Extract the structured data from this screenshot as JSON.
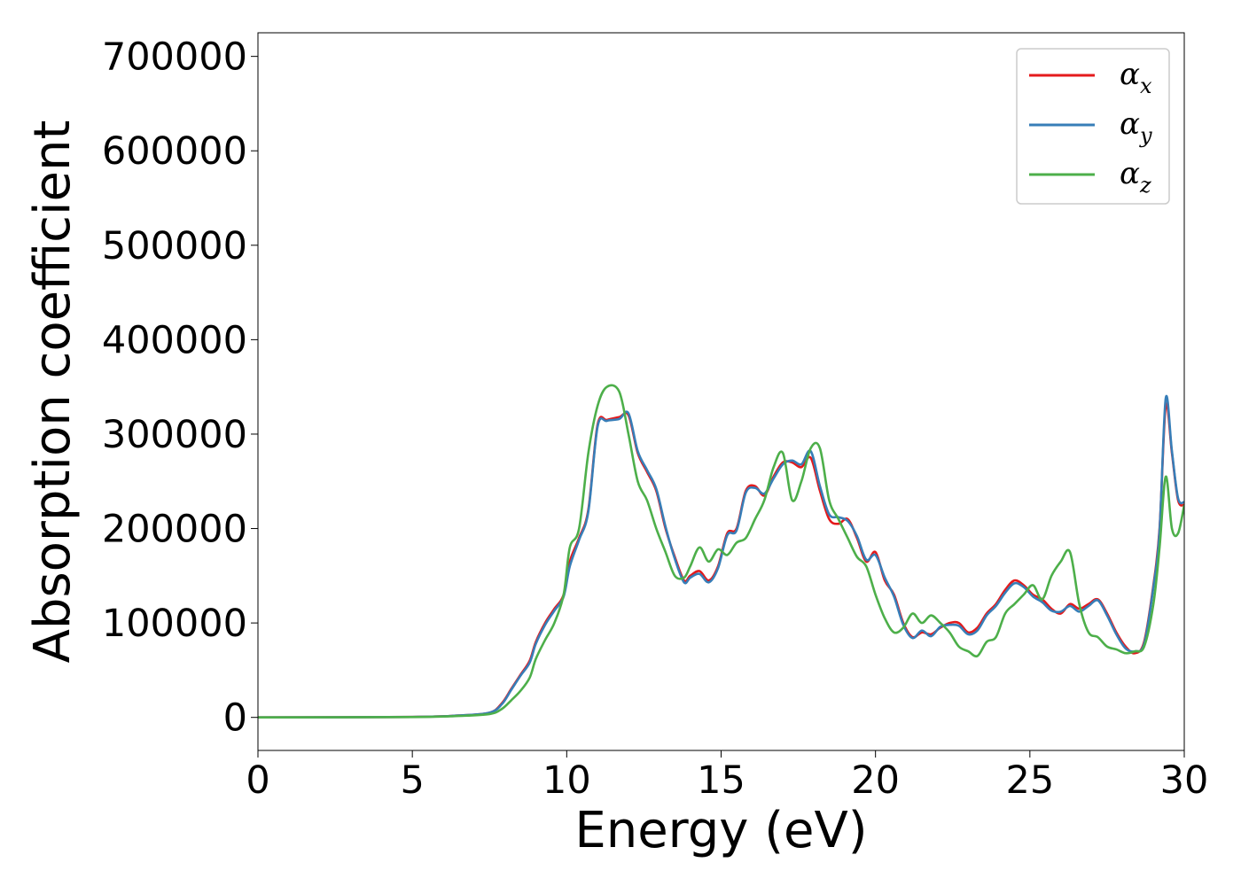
{
  "chart_data": {
    "type": "line",
    "xlabel": "Energy (eV)",
    "ylabel": "Absorption coefficient",
    "xlim": [
      0,
      30
    ],
    "ylim": [
      -35000,
      725000
    ],
    "xticks": [
      0,
      5,
      10,
      15,
      20,
      25,
      30
    ],
    "yticks": [
      0,
      100000,
      200000,
      300000,
      400000,
      500000,
      600000,
      700000
    ],
    "xtick_labels": [
      "0",
      "5",
      "10",
      "15",
      "20",
      "25",
      "30"
    ],
    "ytick_labels": [
      "0",
      "100000",
      "200000",
      "300000",
      "400000",
      "500000",
      "600000",
      "700000"
    ],
    "grid": false,
    "legend_position": "top-right",
    "series": [
      {
        "name_base": "α",
        "name_sub": "x",
        "color": "#e41a1c",
        "x": [
          0,
          5,
          6.5,
          7.5,
          7.9,
          8.2,
          8.5,
          8.8,
          9.0,
          9.3,
          9.6,
          9.9,
          10.1,
          10.4,
          10.7,
          11.0,
          11.3,
          11.7,
          12.0,
          12.3,
          12.6,
          12.9,
          13.2,
          13.5,
          13.8,
          14.0,
          14.3,
          14.6,
          14.9,
          15.2,
          15.5,
          15.8,
          16.1,
          16.4,
          16.7,
          17.0,
          17.3,
          17.6,
          17.9,
          18.2,
          18.5,
          18.8,
          19.1,
          19.4,
          19.7,
          20.0,
          20.3,
          20.6,
          20.9,
          21.2,
          21.5,
          21.8,
          22.1,
          22.4,
          22.7,
          23.0,
          23.3,
          23.6,
          23.9,
          24.2,
          24.5,
          24.8,
          25.1,
          25.4,
          25.7,
          26.0,
          26.3,
          26.6,
          26.9,
          27.2,
          27.5,
          27.8,
          28.1,
          28.4,
          28.7,
          29.0,
          29.2,
          29.4,
          29.6,
          29.8,
          30.0
        ],
        "values": [
          0,
          500,
          2000,
          5000,
          15000,
          30000,
          45000,
          60000,
          80000,
          100000,
          115000,
          130000,
          165000,
          190000,
          220000,
          310000,
          315000,
          318000,
          320000,
          280000,
          260000,
          240000,
          200000,
          170000,
          145000,
          150000,
          155000,
          145000,
          160000,
          195000,
          200000,
          240000,
          245000,
          235000,
          255000,
          270000,
          270000,
          265000,
          275000,
          240000,
          210000,
          205000,
          210000,
          190000,
          165000,
          175000,
          145000,
          130000,
          100000,
          85000,
          90000,
          88000,
          95000,
          100000,
          100000,
          90000,
          95000,
          110000,
          120000,
          135000,
          145000,
          140000,
          130000,
          125000,
          115000,
          110000,
          120000,
          115000,
          120000,
          125000,
          110000,
          90000,
          75000,
          68000,
          80000,
          140000,
          200000,
          330000,
          280000,
          230000,
          225000
        ]
      },
      {
        "name_base": "α",
        "name_sub": "y",
        "color": "#377eb8",
        "x": [
          0,
          5,
          6.5,
          7.5,
          7.9,
          8.2,
          8.5,
          8.8,
          9.0,
          9.3,
          9.6,
          9.9,
          10.1,
          10.4,
          10.7,
          11.0,
          11.3,
          11.7,
          12.0,
          12.3,
          12.6,
          12.9,
          13.2,
          13.5,
          13.8,
          14.0,
          14.3,
          14.6,
          14.9,
          15.2,
          15.5,
          15.8,
          16.1,
          16.4,
          16.7,
          17.0,
          17.3,
          17.6,
          17.9,
          18.2,
          18.5,
          18.8,
          19.1,
          19.4,
          19.7,
          20.0,
          20.3,
          20.6,
          20.9,
          21.2,
          21.5,
          21.8,
          22.1,
          22.4,
          22.7,
          23.0,
          23.3,
          23.6,
          23.9,
          24.2,
          24.5,
          24.8,
          25.1,
          25.4,
          25.7,
          26.0,
          26.3,
          26.6,
          26.9,
          27.2,
          27.5,
          27.8,
          28.1,
          28.4,
          28.7,
          29.0,
          29.2,
          29.4,
          29.6,
          29.8,
          30.0
        ],
        "values": [
          0,
          500,
          2000,
          5000,
          14000,
          29000,
          44000,
          58000,
          78000,
          98000,
          113000,
          128000,
          160000,
          188000,
          218000,
          308000,
          314000,
          316000,
          322000,
          282000,
          262000,
          242000,
          202000,
          168000,
          143000,
          148000,
          152000,
          143000,
          158000,
          193000,
          198000,
          238000,
          243000,
          237000,
          253000,
          268000,
          272000,
          268000,
          282000,
          245000,
          215000,
          212000,
          208000,
          192000,
          167000,
          172000,
          148000,
          128000,
          98000,
          84000,
          92000,
          86000,
          96000,
          98000,
          97000,
          88000,
          92000,
          108000,
          118000,
          132000,
          142000,
          138000,
          128000,
          122000,
          113000,
          112000,
          118000,
          112000,
          118000,
          124000,
          108000,
          88000,
          73000,
          70000,
          78000,
          138000,
          198000,
          338000,
          282000,
          232000,
          228000
        ]
      },
      {
        "name_base": "α",
        "name_sub": "z",
        "color": "#4daf4a",
        "x": [
          0,
          5,
          6.5,
          7.5,
          7.9,
          8.2,
          8.5,
          8.8,
          9.0,
          9.3,
          9.6,
          9.9,
          10.1,
          10.4,
          10.7,
          11.0,
          11.3,
          11.7,
          12.0,
          12.3,
          12.6,
          12.9,
          13.2,
          13.5,
          13.8,
          14.0,
          14.3,
          14.6,
          14.9,
          15.2,
          15.5,
          15.8,
          16.1,
          16.4,
          16.7,
          17.0,
          17.3,
          17.6,
          17.9,
          18.2,
          18.5,
          18.8,
          19.1,
          19.4,
          19.7,
          20.0,
          20.3,
          20.6,
          20.9,
          21.2,
          21.5,
          21.8,
          22.1,
          22.4,
          22.7,
          23.0,
          23.3,
          23.6,
          23.9,
          24.2,
          24.5,
          24.8,
          25.1,
          25.4,
          25.7,
          26.0,
          26.3,
          26.6,
          26.9,
          27.2,
          27.5,
          27.8,
          28.1,
          28.4,
          28.7,
          29.0,
          29.2,
          29.4,
          29.6,
          29.8,
          30.0
        ],
        "values": [
          0,
          400,
          1500,
          3500,
          9000,
          18000,
          28000,
          42000,
          62000,
          82000,
          100000,
          130000,
          180000,
          200000,
          280000,
          330000,
          350000,
          345000,
          300000,
          250000,
          230000,
          200000,
          175000,
          150000,
          148000,
          160000,
          180000,
          165000,
          178000,
          172000,
          185000,
          190000,
          210000,
          230000,
          265000,
          280000,
          230000,
          250000,
          285000,
          285000,
          230000,
          210000,
          190000,
          170000,
          160000,
          130000,
          105000,
          90000,
          95000,
          110000,
          100000,
          108000,
          100000,
          90000,
          75000,
          70000,
          65000,
          80000,
          85000,
          110000,
          120000,
          130000,
          140000,
          125000,
          150000,
          165000,
          175000,
          120000,
          90000,
          85000,
          75000,
          72000,
          68000,
          70000,
          75000,
          120000,
          180000,
          255000,
          200000,
          195000,
          225000
        ]
      }
    ]
  }
}
